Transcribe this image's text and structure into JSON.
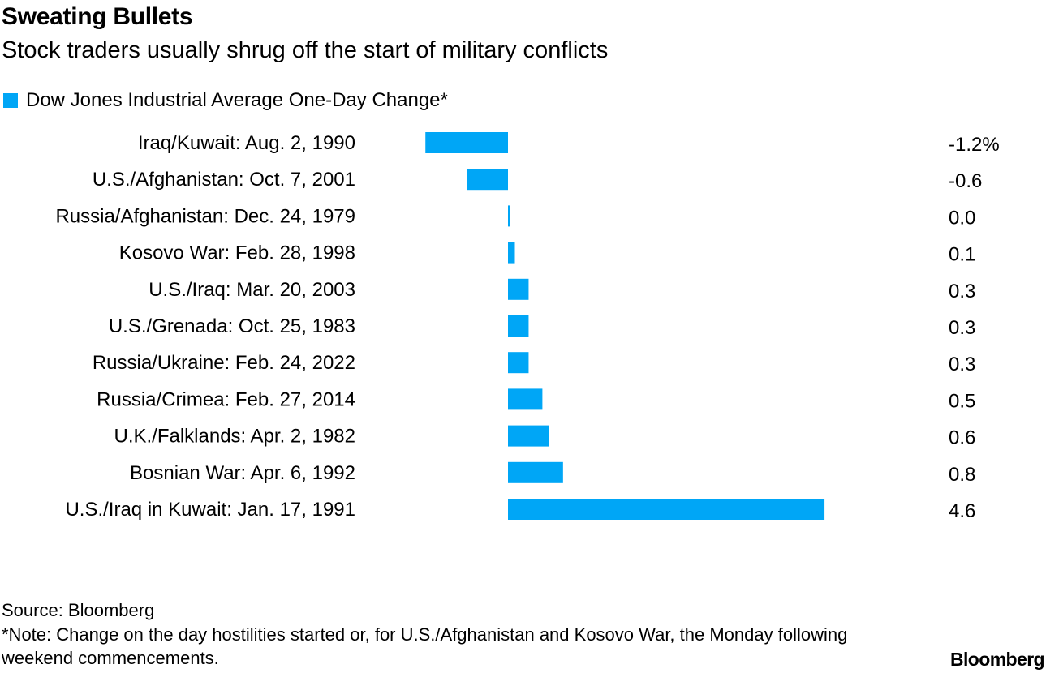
{
  "header": {
    "title": "Sweating Bullets",
    "subtitle": "Stock traders usually shrug off the start of military conflicts"
  },
  "legend": {
    "label": "Dow Jones Industrial Average One-Day Change*"
  },
  "colors": {
    "bar": "#00a6f6",
    "text": "#000000",
    "background": "#ffffff"
  },
  "chart_data": {
    "type": "bar",
    "orientation": "horizontal",
    "categories": [
      "Iraq/Kuwait: Aug. 2, 1990",
      "U.S./Afghanistan: Oct. 7, 2001",
      "Russia/Afghanistan: Dec. 24, 1979",
      "Kosovo War: Feb. 28, 1998",
      "U.S./Iraq: Mar. 20, 2003",
      "U.S./Grenada: Oct. 25, 1983",
      "Russia/Ukraine: Feb. 24, 2022",
      "Russia/Crimea: Feb. 27, 2014",
      "U.K./Falklands: Apr. 2, 1982",
      "Bosnian War: Apr. 6, 1992",
      "U.S./Iraq in Kuwait: Jan. 17, 1991"
    ],
    "series": [
      {
        "name": "Dow Jones Industrial Average One-Day Change*",
        "values": [
          -1.2,
          -0.6,
          0.0,
          0.1,
          0.3,
          0.3,
          0.3,
          0.5,
          0.6,
          0.8,
          4.6
        ]
      }
    ],
    "value_labels": [
      "-1.2%",
      "-0.6",
      "0.0",
      "0.1",
      "0.3",
      "0.3",
      "0.3",
      "0.5",
      "0.6",
      "0.8",
      "4.6"
    ],
    "xlim": [
      -1.2,
      4.6
    ],
    "grid": false,
    "legend_position": "top-left"
  },
  "footer": {
    "source": "Source: Bloomberg",
    "note": "*Note: Change on the day hostilities started or, for U.S./Afghanistan and Kosovo War, the Monday following weekend commencements.",
    "brand": "Bloomberg"
  }
}
